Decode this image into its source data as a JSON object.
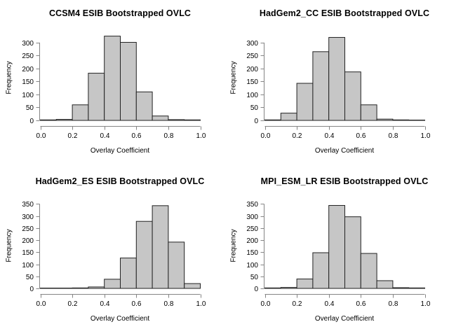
{
  "figure": {
    "background": "#ffffff",
    "axis_color": "#858585",
    "text_color": "#000000",
    "bar_fill": "#c6c6c6",
    "bar_stroke": "#222222"
  },
  "chart_data": [
    {
      "type": "bar",
      "kind": "histogram",
      "title": "CCSM4 ESIB Bootstrapped OVLC",
      "xlabel": "Overlay Coefficient",
      "ylabel": "Frequency",
      "bin_edges": [
        0.0,
        0.1,
        0.2,
        0.3,
        0.4,
        0.5,
        0.6,
        0.7,
        0.8,
        0.9,
        1.0
      ],
      "values": [
        2,
        4,
        60,
        182,
        325,
        301,
        110,
        17,
        3,
        2
      ],
      "xlim": [
        0.0,
        1.0
      ],
      "ylim": [
        0,
        332
      ],
      "xtick_values": [
        0.0,
        0.2,
        0.4,
        0.6,
        0.8,
        1.0
      ],
      "xtick_labels": [
        "0.0",
        "0.2",
        "0.4",
        "0.6",
        "0.8",
        "1.0"
      ],
      "ytick_values": [
        0,
        50,
        100,
        150,
        200,
        250,
        300
      ],
      "ytick_labels": [
        "0",
        "50",
        "100",
        "150",
        "200",
        "250",
        "300"
      ],
      "grid": false,
      "legend": null
    },
    {
      "type": "bar",
      "kind": "histogram",
      "title": "HadGem2_CC ESIB Bootstrapped OVLC",
      "xlabel": "Overlay Coefficient",
      "ylabel": "Frequency",
      "bin_edges": [
        0.0,
        0.1,
        0.2,
        0.3,
        0.4,
        0.5,
        0.6,
        0.7,
        0.8,
        0.9,
        1.0
      ],
      "values": [
        2,
        28,
        143,
        265,
        320,
        187,
        60,
        5,
        2,
        1
      ],
      "xlim": [
        0.0,
        1.0
      ],
      "ylim": [
        0,
        332
      ],
      "xtick_values": [
        0.0,
        0.2,
        0.4,
        0.6,
        0.8,
        1.0
      ],
      "xtick_labels": [
        "0.0",
        "0.2",
        "0.4",
        "0.6",
        "0.8",
        "1.0"
      ],
      "ytick_values": [
        0,
        50,
        100,
        150,
        200,
        250,
        300
      ],
      "ytick_labels": [
        "0",
        "50",
        "100",
        "150",
        "200",
        "250",
        "300"
      ],
      "grid": false,
      "legend": null
    },
    {
      "type": "bar",
      "kind": "histogram",
      "title": "HadGem2_ES ESIB Bootstrapped OVLC",
      "xlabel": "Overlay Coefficient",
      "ylabel": "Frequency",
      "bin_edges": [
        0.0,
        0.1,
        0.2,
        0.3,
        0.4,
        0.5,
        0.6,
        0.7,
        0.8,
        0.9,
        1.0
      ],
      "values": [
        1,
        1,
        2,
        6,
        38,
        126,
        278,
        343,
        192,
        20
      ],
      "xlim": [
        0.0,
        1.0
      ],
      "ylim": [
        0,
        357
      ],
      "xtick_values": [
        0.0,
        0.2,
        0.4,
        0.6,
        0.8,
        1.0
      ],
      "xtick_labels": [
        "0.0",
        "0.2",
        "0.4",
        "0.6",
        "0.8",
        "1.0"
      ],
      "ytick_values": [
        0,
        50,
        100,
        150,
        200,
        250,
        300,
        350
      ],
      "ytick_labels": [
        "0",
        "50",
        "100",
        "150",
        "200",
        "250",
        "300",
        "350"
      ],
      "grid": false,
      "legend": null
    },
    {
      "type": "bar",
      "kind": "histogram",
      "title": "MPI_ESM_LR ESIB Bootstrapped OVLC",
      "xlabel": "Overlay Coefficient",
      "ylabel": "Frequency",
      "bin_edges": [
        0.0,
        0.1,
        0.2,
        0.3,
        0.4,
        0.5,
        0.6,
        0.7,
        0.8,
        0.9,
        1.0
      ],
      "values": [
        2,
        4,
        39,
        148,
        344,
        297,
        145,
        32,
        3,
        2
      ],
      "xlim": [
        0.0,
        1.0
      ],
      "ylim": [
        0,
        357
      ],
      "xtick_values": [
        0.0,
        0.2,
        0.4,
        0.6,
        0.8,
        1.0
      ],
      "xtick_labels": [
        "0.0",
        "0.2",
        "0.4",
        "0.6",
        "0.8",
        "1.0"
      ],
      "ytick_values": [
        0,
        50,
        100,
        150,
        200,
        250,
        300,
        350
      ],
      "ytick_labels": [
        "0",
        "50",
        "100",
        "150",
        "200",
        "250",
        "300",
        "350"
      ],
      "grid": false,
      "legend": null
    }
  ]
}
